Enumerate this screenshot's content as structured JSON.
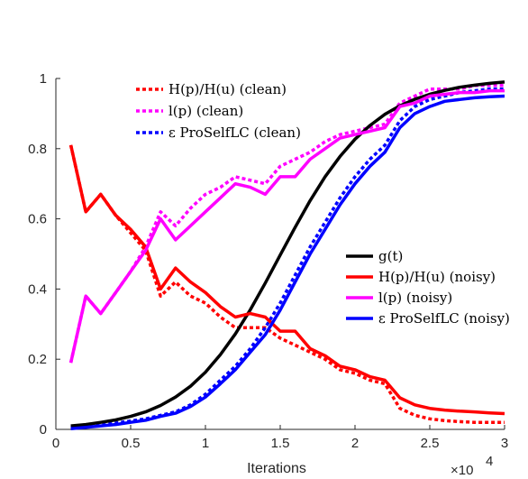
{
  "chart_data": {
    "type": "line",
    "xlabel": "Iterations",
    "x_exponent_label": "×10",
    "x_exponent_power": "4",
    "ylabel": "",
    "xlim": [
      0,
      3
    ],
    "ylim": [
      0,
      1
    ],
    "xticks": [
      "0",
      "0.5",
      "1",
      "1.5",
      "2",
      "2.5",
      "3"
    ],
    "yticks": [
      "0",
      "0.2",
      "0.4",
      "0.6",
      "0.8",
      "1"
    ],
    "xtick_values": [
      0,
      0.5,
      1,
      1.5,
      2,
      2.5,
      3
    ],
    "ytick_values": [
      0,
      0.2,
      0.4,
      0.6,
      0.8,
      1
    ],
    "grid": false,
    "x": [
      0.1,
      0.2,
      0.3,
      0.4,
      0.5,
      0.6,
      0.7,
      0.8,
      0.9,
      1.0,
      1.1,
      1.2,
      1.3,
      1.4,
      1.5,
      1.6,
      1.7,
      1.8,
      1.9,
      2.0,
      2.1,
      2.2,
      2.3,
      2.4,
      2.5,
      2.6,
      2.7,
      2.8,
      2.9,
      3.0
    ],
    "series": [
      {
        "name": "H(p)/H(u) (clean)",
        "color": "#ff0000",
        "dashed": true,
        "values": [
          0.81,
          0.62,
          0.67,
          0.61,
          0.56,
          0.51,
          0.38,
          0.42,
          0.38,
          0.36,
          0.32,
          0.29,
          0.29,
          0.29,
          0.26,
          0.24,
          0.22,
          0.2,
          0.17,
          0.16,
          0.14,
          0.13,
          0.06,
          0.04,
          0.03,
          0.025,
          0.022,
          0.02,
          0.02,
          0.02
        ]
      },
      {
        "name": "l(p) (clean)",
        "color": "#ff00ff",
        "dashed": true,
        "values": [
          0.19,
          0.38,
          0.33,
          0.39,
          0.45,
          0.52,
          0.62,
          0.58,
          0.63,
          0.67,
          0.69,
          0.72,
          0.71,
          0.7,
          0.75,
          0.77,
          0.79,
          0.82,
          0.84,
          0.85,
          0.86,
          0.87,
          0.93,
          0.95,
          0.97,
          0.97,
          0.97,
          0.98,
          0.98,
          0.98
        ]
      },
      {
        "name": "ε ProSelfLC (clean)",
        "color": "#0000ff",
        "dashed": true,
        "values": [
          0.005,
          0.01,
          0.013,
          0.018,
          0.024,
          0.03,
          0.04,
          0.05,
          0.07,
          0.1,
          0.14,
          0.18,
          0.23,
          0.29,
          0.36,
          0.44,
          0.52,
          0.59,
          0.66,
          0.72,
          0.77,
          0.81,
          0.88,
          0.92,
          0.94,
          0.95,
          0.96,
          0.965,
          0.97,
          0.97
        ]
      },
      {
        "name": "g(t)",
        "color": "#000000",
        "dashed": false,
        "values": [
          0.01,
          0.014,
          0.02,
          0.027,
          0.037,
          0.05,
          0.068,
          0.092,
          0.123,
          0.163,
          0.213,
          0.272,
          0.341,
          0.417,
          0.497,
          0.576,
          0.652,
          0.72,
          0.778,
          0.827,
          0.866,
          0.898,
          0.922,
          0.941,
          0.955,
          0.966,
          0.975,
          0.981,
          0.986,
          0.99
        ]
      },
      {
        "name": "H(p)/H(u) (noisy)",
        "color": "#ff0000",
        "dashed": false,
        "values": [
          0.81,
          0.62,
          0.67,
          0.61,
          0.57,
          0.52,
          0.4,
          0.46,
          0.42,
          0.39,
          0.35,
          0.32,
          0.33,
          0.32,
          0.28,
          0.28,
          0.23,
          0.21,
          0.18,
          0.17,
          0.15,
          0.14,
          0.09,
          0.07,
          0.06,
          0.055,
          0.052,
          0.05,
          0.047,
          0.045
        ]
      },
      {
        "name": "l(p) (noisy)",
        "color": "#ff00ff",
        "dashed": false,
        "values": [
          0.19,
          0.38,
          0.33,
          0.39,
          0.45,
          0.51,
          0.6,
          0.54,
          0.58,
          0.62,
          0.66,
          0.7,
          0.69,
          0.67,
          0.72,
          0.72,
          0.77,
          0.8,
          0.83,
          0.84,
          0.85,
          0.86,
          0.92,
          0.93,
          0.95,
          0.955,
          0.96,
          0.96,
          0.965,
          0.965
        ]
      },
      {
        "name": "ε ProSelfLC (noisy)",
        "color": "#0000ff",
        "dashed": false,
        "values": [
          0.002,
          0.006,
          0.01,
          0.014,
          0.02,
          0.026,
          0.037,
          0.046,
          0.065,
          0.092,
          0.13,
          0.17,
          0.22,
          0.27,
          0.34,
          0.42,
          0.5,
          0.57,
          0.64,
          0.7,
          0.75,
          0.79,
          0.86,
          0.9,
          0.92,
          0.935,
          0.94,
          0.945,
          0.948,
          0.95
        ]
      }
    ],
    "legend_top_left": {
      "entries": [
        {
          "color": "#ff0000",
          "dashed": true,
          "text": "H(p)/H(u) (clean)"
        },
        {
          "color": "#ff00ff",
          "dashed": true,
          "text": "l(p) (clean)"
        },
        {
          "color": "#0000ff",
          "dashed": true,
          "text": "ε ProSelfLC (clean)"
        }
      ]
    },
    "legend_center_right": {
      "entries": [
        {
          "color": "#000000",
          "dashed": false,
          "text": "g(t)"
        },
        {
          "color": "#ff0000",
          "dashed": false,
          "text": "H(p)/H(u) (noisy)"
        },
        {
          "color": "#ff00ff",
          "dashed": false,
          "text": "l(p) (noisy)"
        },
        {
          "color": "#0000ff",
          "dashed": false,
          "text": "ε ProSelfLC (noisy)"
        }
      ]
    }
  }
}
